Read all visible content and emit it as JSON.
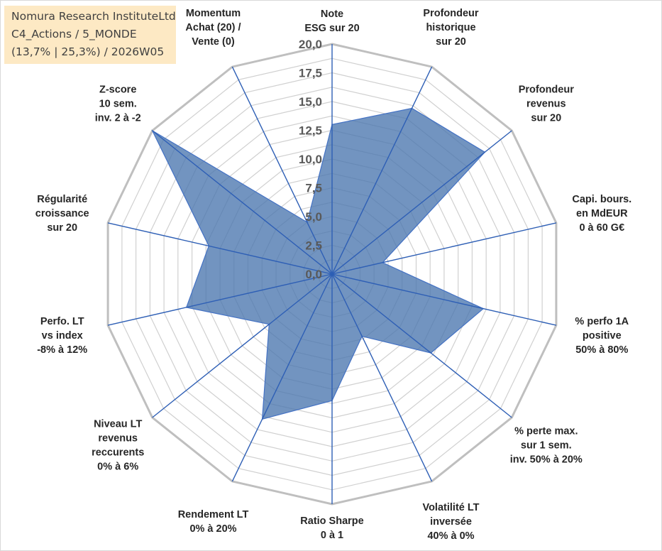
{
  "title": {
    "line1": "Nomura Research InstituteLtd",
    "line2": "C4_Actions / 5_MONDE",
    "line3": "(13,7% | 25,3%) / 2026W05"
  },
  "chart_data": {
    "type": "radar",
    "rlim": [
      0,
      20
    ],
    "ticks": [
      0,
      2.5,
      5,
      7.5,
      10,
      12.5,
      15,
      17.5,
      20
    ],
    "tick_labels": [
      "0,0",
      "2,5",
      "5,0",
      "7,5",
      "10,0",
      "12,5",
      "15,0",
      "17,5",
      "20,0"
    ],
    "categories": [
      {
        "label": [
          "Note",
          "ESG sur 20"
        ],
        "value": 13
      },
      {
        "label": [
          "Profondeur",
          "historique",
          "sur 20"
        ],
        "value": 16
      },
      {
        "label": [
          "Profondeur",
          "revenus",
          "sur 20"
        ],
        "value": 17
      },
      {
        "label": [
          "Capi. bours.",
          "en MdEUR",
          "0 à 60 G€"
        ],
        "value": 4.5
      },
      {
        "label": [
          "% perfo 1A",
          "positive",
          "50% à 80%"
        ],
        "value": 13.5
      },
      {
        "label": [
          "% perte max.",
          "sur 1 sem.",
          "inv. 50% à 20%"
        ],
        "value": 11
      },
      {
        "label": [
          "Volatilité LT",
          "inversée",
          "40% à 0%"
        ],
        "value": 6
      },
      {
        "label": [
          "Ratio Sharpe",
          "0 à 1"
        ],
        "value": 11
      },
      {
        "label": [
          "Rendement LT",
          "0% à 20%"
        ],
        "value": 14
      },
      {
        "label": [
          "Niveau LT",
          "revenus",
          "reccurents",
          "0% à 6%"
        ],
        "value": 7
      },
      {
        "label": [
          "Perfo. LT",
          "vs index",
          "-8% à 12%"
        ],
        "value": 13
      },
      {
        "label": [
          "Régularité",
          "croissance",
          "sur 20"
        ],
        "value": 11
      },
      {
        "label": [
          "Z-score",
          "10 sem.",
          "inv. 2 à -2"
        ],
        "value": 20
      },
      {
        "label": [
          "Momentum",
          "Achat (20) /",
          "Vente (0)"
        ],
        "value": 5
      }
    ],
    "colors": {
      "fill": "#4a76ae",
      "spoke": "#2e5fb5",
      "grid": "#d0d0d0",
      "title_bg": "#fde9c4"
    }
  }
}
